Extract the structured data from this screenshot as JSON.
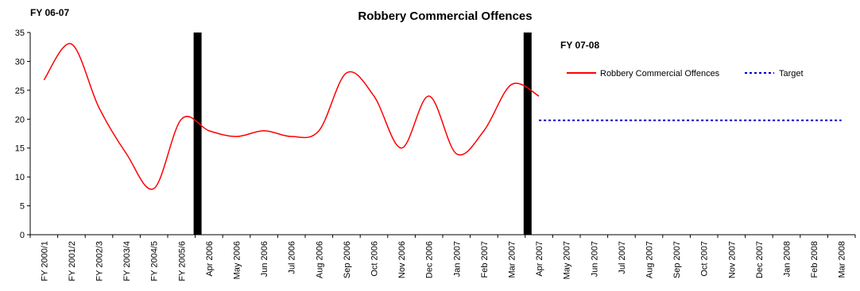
{
  "chart_data": {
    "type": "line",
    "title": "Robbery Commercial Offences",
    "xlabel": "",
    "ylabel": "",
    "ylim": [
      0,
      35
    ],
    "yticks": [
      0,
      5,
      10,
      15,
      20,
      25,
      30,
      35
    ],
    "grid": false,
    "legend_position": "top-right",
    "categories": [
      "FY 2000/1",
      "FY 2001/2",
      "FY 2002/3",
      "FY 2003/4",
      "FY 2004/5",
      "FY 2005/6",
      "Apr 2006",
      "May 2006",
      "Jun 2006",
      "Jul 2006",
      "Aug 2006",
      "Sep 2006",
      "Oct 2006",
      "Nov 2006",
      "Dec 2006",
      "Jan 2007",
      "Feb 2007",
      "Mar 2007",
      "Apr 2007",
      "May 2007",
      "Jun 2007",
      "Jul 2007",
      "Aug 2007",
      "Sep 2007",
      "Oct 2007",
      "Nov 2007",
      "Dec 2007",
      "Jan 2008",
      "Feb 2008",
      "Mar 2008"
    ],
    "series": [
      {
        "name": "Robbery Commercial Offences",
        "color": "#ff0000",
        "style": "solid",
        "values": [
          26.8,
          33.0,
          22.0,
          14.0,
          8.0,
          20.0,
          18.0,
          17.0,
          18.0,
          17.0,
          18.0,
          28.0,
          24.0,
          15.0,
          24.0,
          14.0,
          18.0,
          26.0,
          24.0,
          null,
          null,
          null,
          null,
          null,
          null,
          null,
          null,
          null,
          null,
          null
        ]
      },
      {
        "name": "Target",
        "color": "#0000cc",
        "style": "dotted",
        "values": [
          null,
          null,
          null,
          null,
          null,
          null,
          null,
          null,
          null,
          null,
          null,
          null,
          null,
          null,
          null,
          null,
          null,
          null,
          19.8,
          19.8,
          19.8,
          19.8,
          19.8,
          19.8,
          19.8,
          19.8,
          19.8,
          19.8,
          19.8,
          19.8
        ]
      }
    ],
    "annotations": [
      {
        "text": "FY 06-07"
      },
      {
        "text": "FY 07-08"
      }
    ],
    "vertical_markers": [
      "Apr 2006",
      "Apr 2007"
    ]
  }
}
